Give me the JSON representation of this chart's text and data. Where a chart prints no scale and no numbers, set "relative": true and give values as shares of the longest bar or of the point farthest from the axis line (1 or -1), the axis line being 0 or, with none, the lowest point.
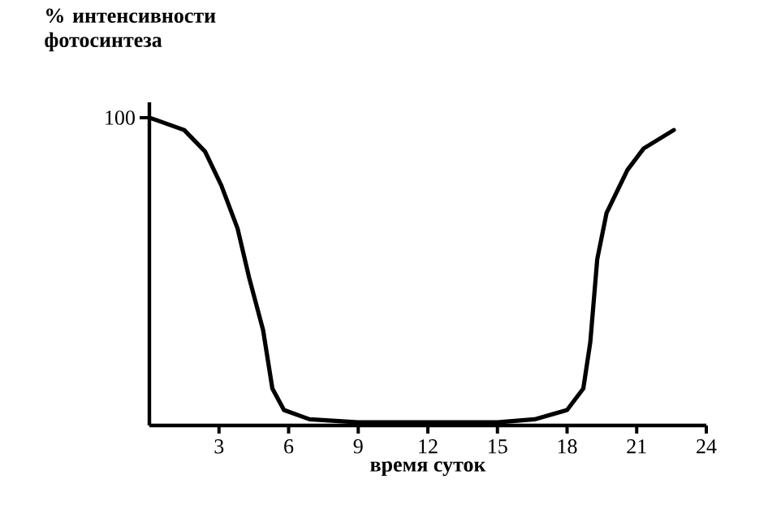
{
  "chart_data": {
    "type": "line",
    "relative": true,
    "ylabel": "% интенсивности фотосинтеза",
    "xlabel": "время суток",
    "annotations": [
      {
        "text": "100",
        "x": 0,
        "y": 1
      }
    ],
    "xlim": [
      0,
      24
    ],
    "xticks": [
      3,
      6,
      9,
      12,
      15,
      18,
      21,
      24
    ],
    "series": [
      {
        "color": "#000000",
        "x": [
          0,
          0.2,
          1.5,
          2.4,
          3.1,
          3.8,
          4.3,
          4.9,
          5.3,
          5.8,
          6.9,
          9,
          12,
          15,
          16.6,
          18.0,
          18.7,
          19.0,
          19.3,
          19.7,
          20.6,
          21.3,
          22.6
        ],
        "values": [
          1,
          0.995,
          0.96,
          0.89,
          0.78,
          0.64,
          0.48,
          0.31,
          0.12,
          0.05,
          0.02,
          0.01,
          0.01,
          0.01,
          0.02,
          0.05,
          0.12,
          0.27,
          0.54,
          0.69,
          0.83,
          0.9,
          0.96
        ]
      }
    ]
  }
}
